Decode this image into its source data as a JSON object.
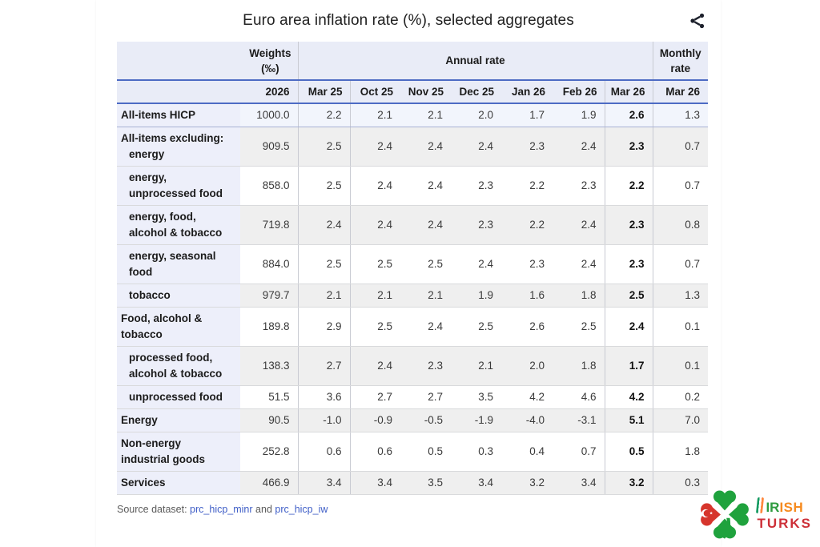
{
  "chart_data": {
    "type": "table",
    "title": "Euro area inflation rate (%), selected aggregates",
    "columns": {
      "weights_label": "Weights",
      "weights_unit": "(‰)",
      "annual_rate": "Annual rate",
      "monthly_line1": "Monthly",
      "monthly_line2": "rate",
      "weights_year": "2026",
      "months": [
        "Mar 25",
        "Oct 25",
        "Nov 25",
        "Dec 25",
        "Jan 26",
        "Feb 26",
        "Mar 26"
      ],
      "monthly_month": "Mar 26"
    },
    "rows": [
      {
        "label": [
          [
            "All-items HICP",
            0
          ]
        ],
        "weight": "1000.0",
        "annual": [
          "2.2",
          "2.1",
          "2.1",
          "2.0",
          "1.7",
          "1.9",
          "2.6"
        ],
        "monthly": "1.3"
      },
      {
        "label": [
          [
            "All-items excluding:",
            0
          ],
          [
            "energy",
            1
          ]
        ],
        "weight": "909.5",
        "annual": [
          "2.5",
          "2.4",
          "2.4",
          "2.4",
          "2.3",
          "2.4",
          "2.3"
        ],
        "monthly": "0.7"
      },
      {
        "label": [
          [
            "energy,",
            1
          ],
          [
            "unprocessed food",
            1
          ]
        ],
        "weight": "858.0",
        "annual": [
          "2.5",
          "2.4",
          "2.4",
          "2.3",
          "2.2",
          "2.3",
          "2.2"
        ],
        "monthly": "0.7"
      },
      {
        "label": [
          [
            "energy, food,",
            1
          ],
          [
            "alcohol & tobacco",
            1
          ]
        ],
        "weight": "719.8",
        "annual": [
          "2.4",
          "2.4",
          "2.4",
          "2.3",
          "2.2",
          "2.4",
          "2.3"
        ],
        "monthly": "0.8"
      },
      {
        "label": [
          [
            "energy, seasonal",
            1
          ],
          [
            "food",
            1
          ]
        ],
        "weight": "884.0",
        "annual": [
          "2.5",
          "2.5",
          "2.5",
          "2.4",
          "2.3",
          "2.4",
          "2.3"
        ],
        "monthly": "0.7"
      },
      {
        "label": [
          [
            "tobacco",
            1
          ]
        ],
        "weight": "979.7",
        "annual": [
          "2.1",
          "2.1",
          "2.1",
          "1.9",
          "1.6",
          "1.8",
          "2.5"
        ],
        "monthly": "1.3"
      },
      {
        "label": [
          [
            "Food, alcohol &",
            0
          ],
          [
            "tobacco",
            0
          ]
        ],
        "weight": "189.8",
        "annual": [
          "2.9",
          "2.5",
          "2.4",
          "2.5",
          "2.6",
          "2.5",
          "2.4"
        ],
        "monthly": "0.1"
      },
      {
        "label": [
          [
            "processed food,",
            1
          ],
          [
            "alcohol & tobacco",
            1
          ]
        ],
        "weight": "138.3",
        "annual": [
          "2.7",
          "2.4",
          "2.3",
          "2.1",
          "2.0",
          "1.8",
          "1.7"
        ],
        "monthly": "0.1"
      },
      {
        "label": [
          [
            "unprocessed food",
            1
          ]
        ],
        "weight": "51.5",
        "annual": [
          "3.6",
          "2.7",
          "2.7",
          "3.5",
          "4.2",
          "4.6",
          "4.2"
        ],
        "monthly": "0.2"
      },
      {
        "label": [
          [
            "Energy",
            0
          ]
        ],
        "weight": "90.5",
        "annual": [
          "-1.0",
          "-0.9",
          "-0.5",
          "-1.9",
          "-4.0",
          "-3.1",
          "5.1"
        ],
        "monthly": "7.0"
      },
      {
        "label": [
          [
            "Non-energy",
            0
          ],
          [
            "industrial goods",
            0
          ]
        ],
        "weight": "252.8",
        "annual": [
          "0.6",
          "0.6",
          "0.5",
          "0.3",
          "0.4",
          "0.7",
          "0.5"
        ],
        "monthly": "1.8"
      },
      {
        "label": [
          [
            "Services",
            0
          ]
        ],
        "weight": "466.9",
        "annual": [
          "3.4",
          "3.4",
          "3.5",
          "3.4",
          "3.2",
          "3.4",
          "3.2"
        ],
        "monthly": "0.3"
      }
    ],
    "layout": {
      "bold_column": "Mar 26 annual",
      "header_line_color": "#4d6bc4",
      "label_column_bg": "#edeffa",
      "zebra_gray": "#efefef"
    }
  },
  "footer": {
    "source_prefix": "Source dataset:",
    "source_link1": "prc_hicp_minr",
    "source_and": "and",
    "source_link2": "prc_hicp_iw"
  },
  "icons": {
    "share_icon": "share-nodes",
    "shamrock_icon": "four-leaf-clover-with-turkish-flag-leaf",
    "irish_flag_icon": "ireland-tricolor-bar"
  },
  "watermark": {
    "text_top_green": "ir",
    "text_top_orange": "ish",
    "text_bottom": "turks",
    "green": "#2e9b3f",
    "orange": "#f68b1f",
    "red": "#cd3038"
  }
}
